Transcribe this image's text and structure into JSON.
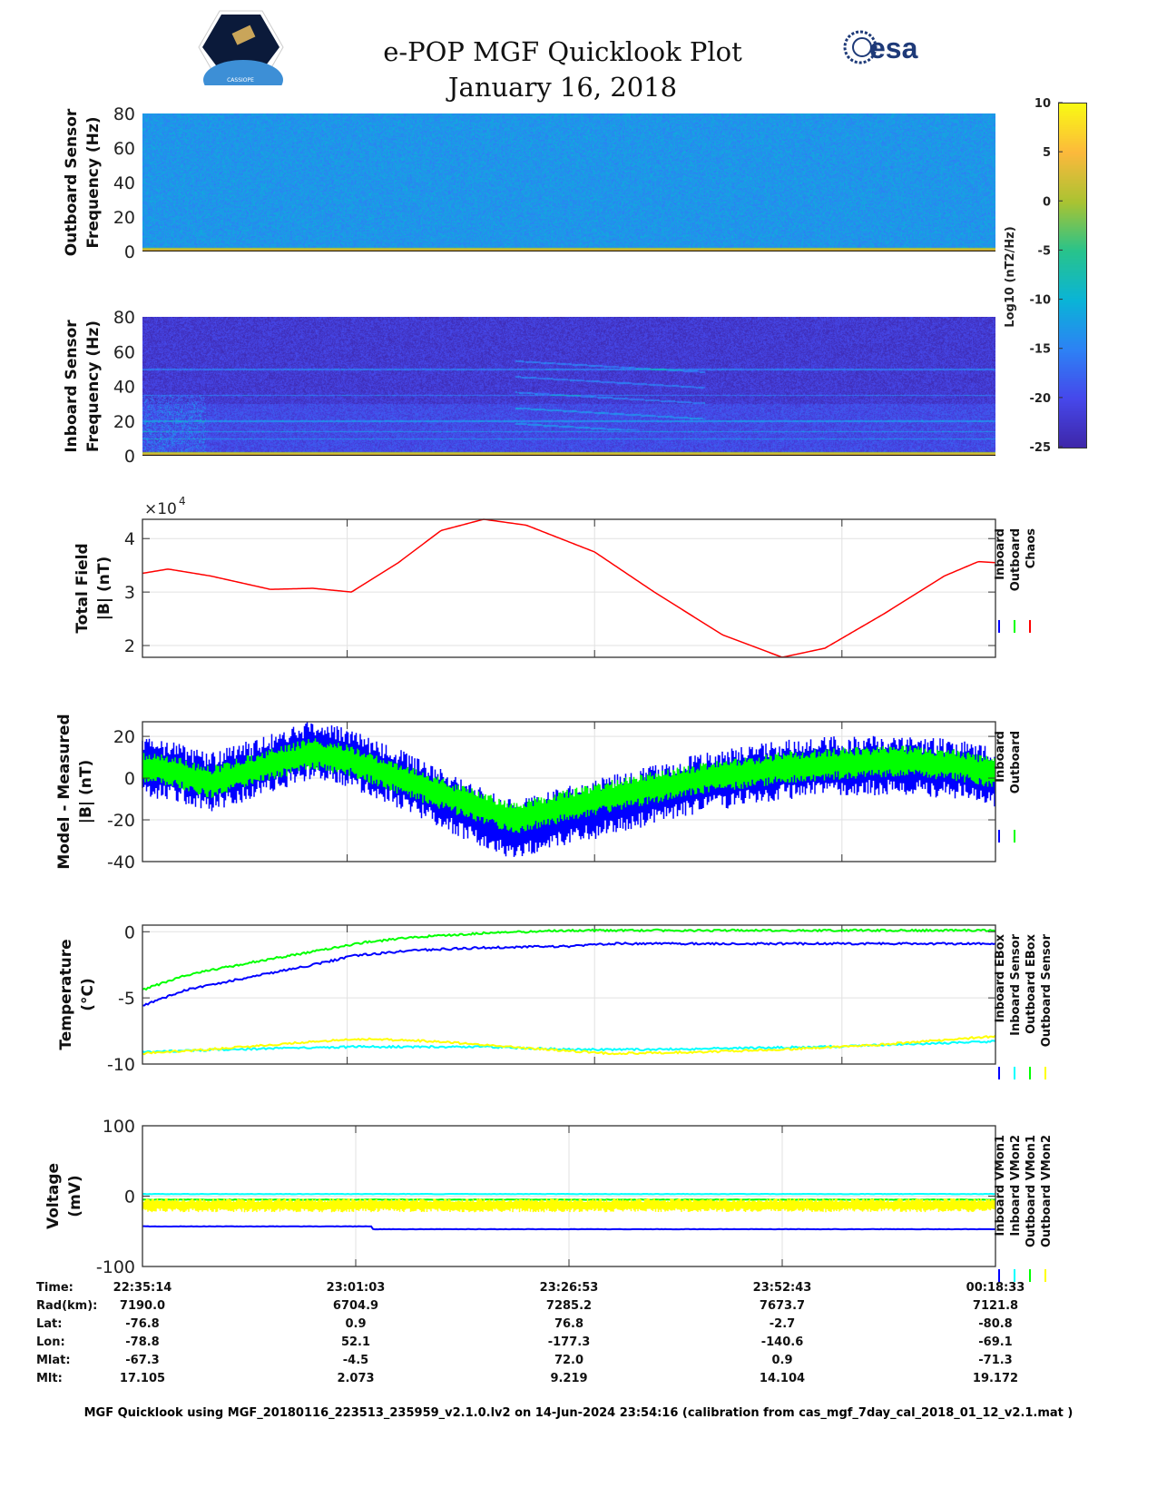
{
  "header": {
    "title_line1": "e-POP MGF Quicklook Plot",
    "title_line2": "January 16, 2018",
    "left_logo_text": "CASSIOPE",
    "right_logo_text": "esa"
  },
  "colors": {
    "inboard": "#0000ff",
    "outboard": "#00ff00",
    "chaos": "#ff0000",
    "cyan": "#00ffff",
    "yellow": "#ffff00"
  },
  "chart_data": [
    {
      "id": "outboard-spectrogram",
      "type": "heatmap",
      "ylabel": [
        "Outboard Sensor",
        "Frequency (Hz)"
      ],
      "ylim": [
        0,
        80
      ],
      "yticks": [
        0,
        20,
        40,
        60,
        80
      ],
      "background_log10": -13,
      "low_freq_line_log10": 8
    },
    {
      "id": "inboard-spectrogram",
      "type": "heatmap",
      "ylabel": [
        "Inboard Sensor",
        "Frequency (Hz)"
      ],
      "ylim": [
        0,
        80
      ],
      "yticks": [
        0,
        20,
        40,
        60,
        80
      ],
      "background_log10": -22,
      "low_freq_line_log10": 8
    },
    {
      "id": "colorbar",
      "type": "colorbar",
      "label": "Log10 (nT2/Hz)",
      "ylim": [
        -25,
        10
      ],
      "yticks": [
        10,
        5,
        0,
        -5,
        -10,
        -15,
        -20,
        -25
      ]
    },
    {
      "id": "total-field",
      "type": "line",
      "ylabel": [
        "Total Field",
        "|B| (nT)"
      ],
      "multiplier": "×10",
      "multiplier_exp": "4",
      "ylim": [
        1.78,
        4.36
      ],
      "yticks": [
        2,
        3,
        4
      ],
      "xgrid": [
        0.24,
        0.53,
        0.82
      ],
      "legend": [
        "Inboard",
        "Outboard",
        "Chaos"
      ],
      "series": [
        {
          "name": "Chaos",
          "color": "#ff0000",
          "x": [
            0,
            0.03,
            0.08,
            0.15,
            0.2,
            0.245,
            0.3,
            0.35,
            0.4,
            0.45,
            0.53,
            0.6,
            0.68,
            0.75,
            0.8,
            0.87,
            0.94,
            0.98,
            1
          ],
          "y": [
            3.35,
            3.43,
            3.3,
            3.05,
            3.07,
            3.0,
            3.55,
            4.15,
            4.36,
            4.25,
            3.75,
            3.0,
            2.2,
            1.78,
            1.95,
            2.6,
            3.3,
            3.57,
            3.55
          ]
        }
      ]
    },
    {
      "id": "model-minus-measured",
      "type": "line",
      "ylabel": [
        "Model - Measured",
        "|B| (nT)"
      ],
      "ylim": [
        -40,
        27
      ],
      "yticks": [
        20,
        0,
        -20,
        -40
      ],
      "xgrid": [
        0.24,
        0.53,
        0.82
      ],
      "legend": [
        "Inboard",
        "Outboard"
      ],
      "series": [
        {
          "name": "Inboard",
          "color": "#0000ff",
          "x": [
            0,
            0.04,
            0.08,
            0.12,
            0.2,
            0.24,
            0.3,
            0.36,
            0.42,
            0.44,
            0.5,
            0.58,
            0.66,
            0.75,
            0.82,
            0.9,
            0.96,
            1
          ],
          "y": [
            5,
            3,
            -2,
            3,
            14,
            10,
            0,
            -12,
            -23,
            -25,
            -18,
            -10,
            -2,
            4,
            6,
            6,
            4,
            0
          ],
          "spread": 13
        },
        {
          "name": "Outboard",
          "color": "#00ff00",
          "x": [
            0,
            0.04,
            0.08,
            0.12,
            0.2,
            0.24,
            0.3,
            0.36,
            0.42,
            0.44,
            0.5,
            0.58,
            0.66,
            0.75,
            0.82,
            0.9,
            0.96,
            1
          ],
          "y": [
            5,
            3,
            -2,
            3,
            12,
            9,
            0,
            -9,
            -17,
            -19,
            -13,
            -6,
            0,
            5,
            7,
            8,
            6,
            2
          ],
          "spread": 7
        }
      ]
    },
    {
      "id": "temperature",
      "type": "line",
      "ylabel": [
        "Temperature",
        "(°C)"
      ],
      "ylim": [
        -10,
        0.5
      ],
      "yticks": [
        0,
        -5,
        -10
      ],
      "xgrid": [
        0.24,
        0.53,
        0.82
      ],
      "legend": [
        "Inboard EBox",
        "Inboard Sensor",
        "Outboard EBox",
        "Outboard Sensor"
      ],
      "series": [
        {
          "name": "Inboard EBox",
          "color": "#0000ff",
          "x": [
            0,
            0.05,
            0.12,
            0.2,
            0.25,
            0.32,
            0.4,
            0.5,
            0.55,
            0.6,
            1
          ],
          "y": [
            -5.6,
            -4.4,
            -3.5,
            -2.5,
            -1.8,
            -1.4,
            -1.2,
            -1.1,
            -0.9,
            -0.9,
            -0.9
          ]
        },
        {
          "name": "Inboard Sensor",
          "color": "#00ffff",
          "x": [
            0,
            0.1,
            0.25,
            0.4,
            0.5,
            0.6,
            0.8,
            1
          ],
          "y": [
            -9.1,
            -8.9,
            -8.7,
            -8.7,
            -8.9,
            -8.9,
            -8.7,
            -8.3
          ]
        },
        {
          "name": "Outboard EBox",
          "color": "#00ff00",
          "x": [
            0,
            0.05,
            0.12,
            0.2,
            0.26,
            0.32,
            0.4,
            0.5,
            0.6,
            1
          ],
          "y": [
            -4.4,
            -3.3,
            -2.4,
            -1.5,
            -0.8,
            -0.4,
            -0.1,
            0.1,
            0.1,
            0.1
          ]
        },
        {
          "name": "Outboard Sensor",
          "color": "#ffff00",
          "x": [
            0,
            0.1,
            0.2,
            0.26,
            0.35,
            0.45,
            0.55,
            0.65,
            0.75,
            0.85,
            1
          ],
          "y": [
            -9.2,
            -8.8,
            -8.3,
            -8.1,
            -8.3,
            -8.8,
            -9.2,
            -9.1,
            -8.9,
            -8.6,
            -7.9
          ]
        }
      ]
    },
    {
      "id": "voltage",
      "type": "line",
      "ylabel": [
        "Voltage",
        "(mV)"
      ],
      "ylim": [
        -100,
        100
      ],
      "yticks": [
        100,
        0,
        -100
      ],
      "xgrid": [
        0.25,
        0.5,
        0.75
      ],
      "legend": [
        "Inboard VMon1",
        "Inboard VMon2",
        "Outboard VMon1",
        "Outboard VMon2"
      ],
      "series": [
        {
          "name": "Inboard VMon1",
          "color": "#0000ff",
          "x": [
            0,
            0.27,
            0.27,
            1
          ],
          "y": [
            -43,
            -43,
            -47,
            -47
          ]
        },
        {
          "name": "Inboard VMon2",
          "color": "#00ffff",
          "x": [
            0,
            1
          ],
          "y": [
            3,
            3
          ]
        },
        {
          "name": "Outboard VMon1",
          "color": "#00ff00",
          "x": [
            0,
            1
          ],
          "y": [
            -5,
            -5
          ]
        },
        {
          "name": "Outboard VMon2",
          "color": "#ffff00",
          "x": [
            0,
            1
          ],
          "y": [
            -13,
            -13
          ],
          "spread": 9
        }
      ]
    }
  ],
  "ephemeris": {
    "labels": [
      "Time:",
      "Rad(km):",
      "Lat:",
      "Lon:",
      "Mlat:",
      "Mlt:"
    ],
    "columns": [
      [
        "22:35:14",
        "7190.0",
        "-76.8",
        "-78.8",
        "-67.3",
        "17.105"
      ],
      [
        "23:01:03",
        "6704.9",
        "0.9",
        "52.1",
        "-4.5",
        "2.073"
      ],
      [
        "23:26:53",
        "7285.2",
        "76.8",
        "-177.3",
        "72.0",
        "9.219"
      ],
      [
        "23:52:43",
        "7673.7",
        "-2.7",
        "-140.6",
        "0.9",
        "14.104"
      ],
      [
        "00:18:33",
        "7121.8",
        "-80.8",
        "-69.1",
        "-71.3",
        "19.172"
      ]
    ]
  },
  "footer": "MGF Quicklook using MGF_20180116_223513_235959_v2.1.0.lv2 on 14-Jun-2024 23:54:16 (calibration from cas_mgf_7day_cal_2018_01_12_v2.1.mat )"
}
